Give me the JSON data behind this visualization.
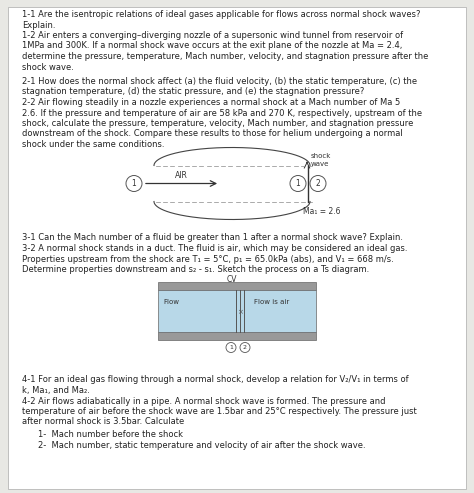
{
  "bg_color": "#e8e8e4",
  "page_color": "#ffffff",
  "text_color": "#222222",
  "body_fontsize": 6.0,
  "lines_section1": [
    "1-1 Are the isentropic relations of ideal gases applicable for flows across normal shock waves?",
    "Explain.",
    "1-2 Air enters a converging–diverging nozzle of a supersonic wind tunnel from reservoir of",
    "1MPa and 300K. If a normal shock wave occurs at the exit plane of the nozzle at Ma = 2.4,",
    "determine the pressure, temperature, Mach number, velocity, and stagnation pressure after the",
    "shock wave."
  ],
  "lines_section2": [
    "2-1 How does the normal shock affect (a) the fluid velocity, (b) the static temperature, (c) the",
    "stagnation temperature, (d) the static pressure, and (e) the stagnation pressure?",
    "2-2 Air flowing steadily in a nozzle experiences a normal shock at a Mach number of Ma 5",
    "2.6. If the pressure and temperature of air are 58 kPa and 270 K, respectively, upstream of the",
    "shock, calculate the pressure, temperature, velocity, Mach number, and stagnation pressure",
    "downstream of the shock. Compare these results to those for helium undergoing a normal",
    "shock under the same conditions."
  ],
  "lines_section3": [
    "3-1 Can the Mach number of a fluid be greater than 1 after a normal shock wave? Explain.",
    "3-2 A normal shock stands in a duct. The fluid is air, which may be considered an ideal gas.",
    "Properties upstream from the shock are T₁ = 5°C, p₁ = 65.0kPa (abs), and V₁ = 668 m/s.",
    "Determine properties downstream and s₂ - s₁. Sketch the process on a Ts diagram."
  ],
  "lines_section4": [
    "4-1 For an ideal gas flowing through a normal shock, develop a relation for V₂/V₁ in terms of",
    "k, Ma₁, and Ma₂.",
    "4-2 Air flows adiabatically in a pipe. A normal shock wave is formed. The pressure and",
    "temperature of air before the shock wave are 1.5bar and 25°C respectively. The pressure just",
    "after normal shock is 3.5bar. Calculate"
  ],
  "lines_section4b": [
    "1-  Mach number before the shock",
    "2-  Mach number, static temperature and velocity of air after the shock wave."
  ],
  "diagram1_shock_label": "shock\nwave",
  "diagram1_air_label": "AIR",
  "diagram1_ma_label": "Ma₁ = 2.6",
  "diagram2_cv_label": "CV",
  "diagram2_flow_label": "Flow",
  "diagram2_flowair_label": "Flow is air",
  "diagram2_rect_color": "#b8d8e8",
  "diagram2_border_color": "#666666"
}
